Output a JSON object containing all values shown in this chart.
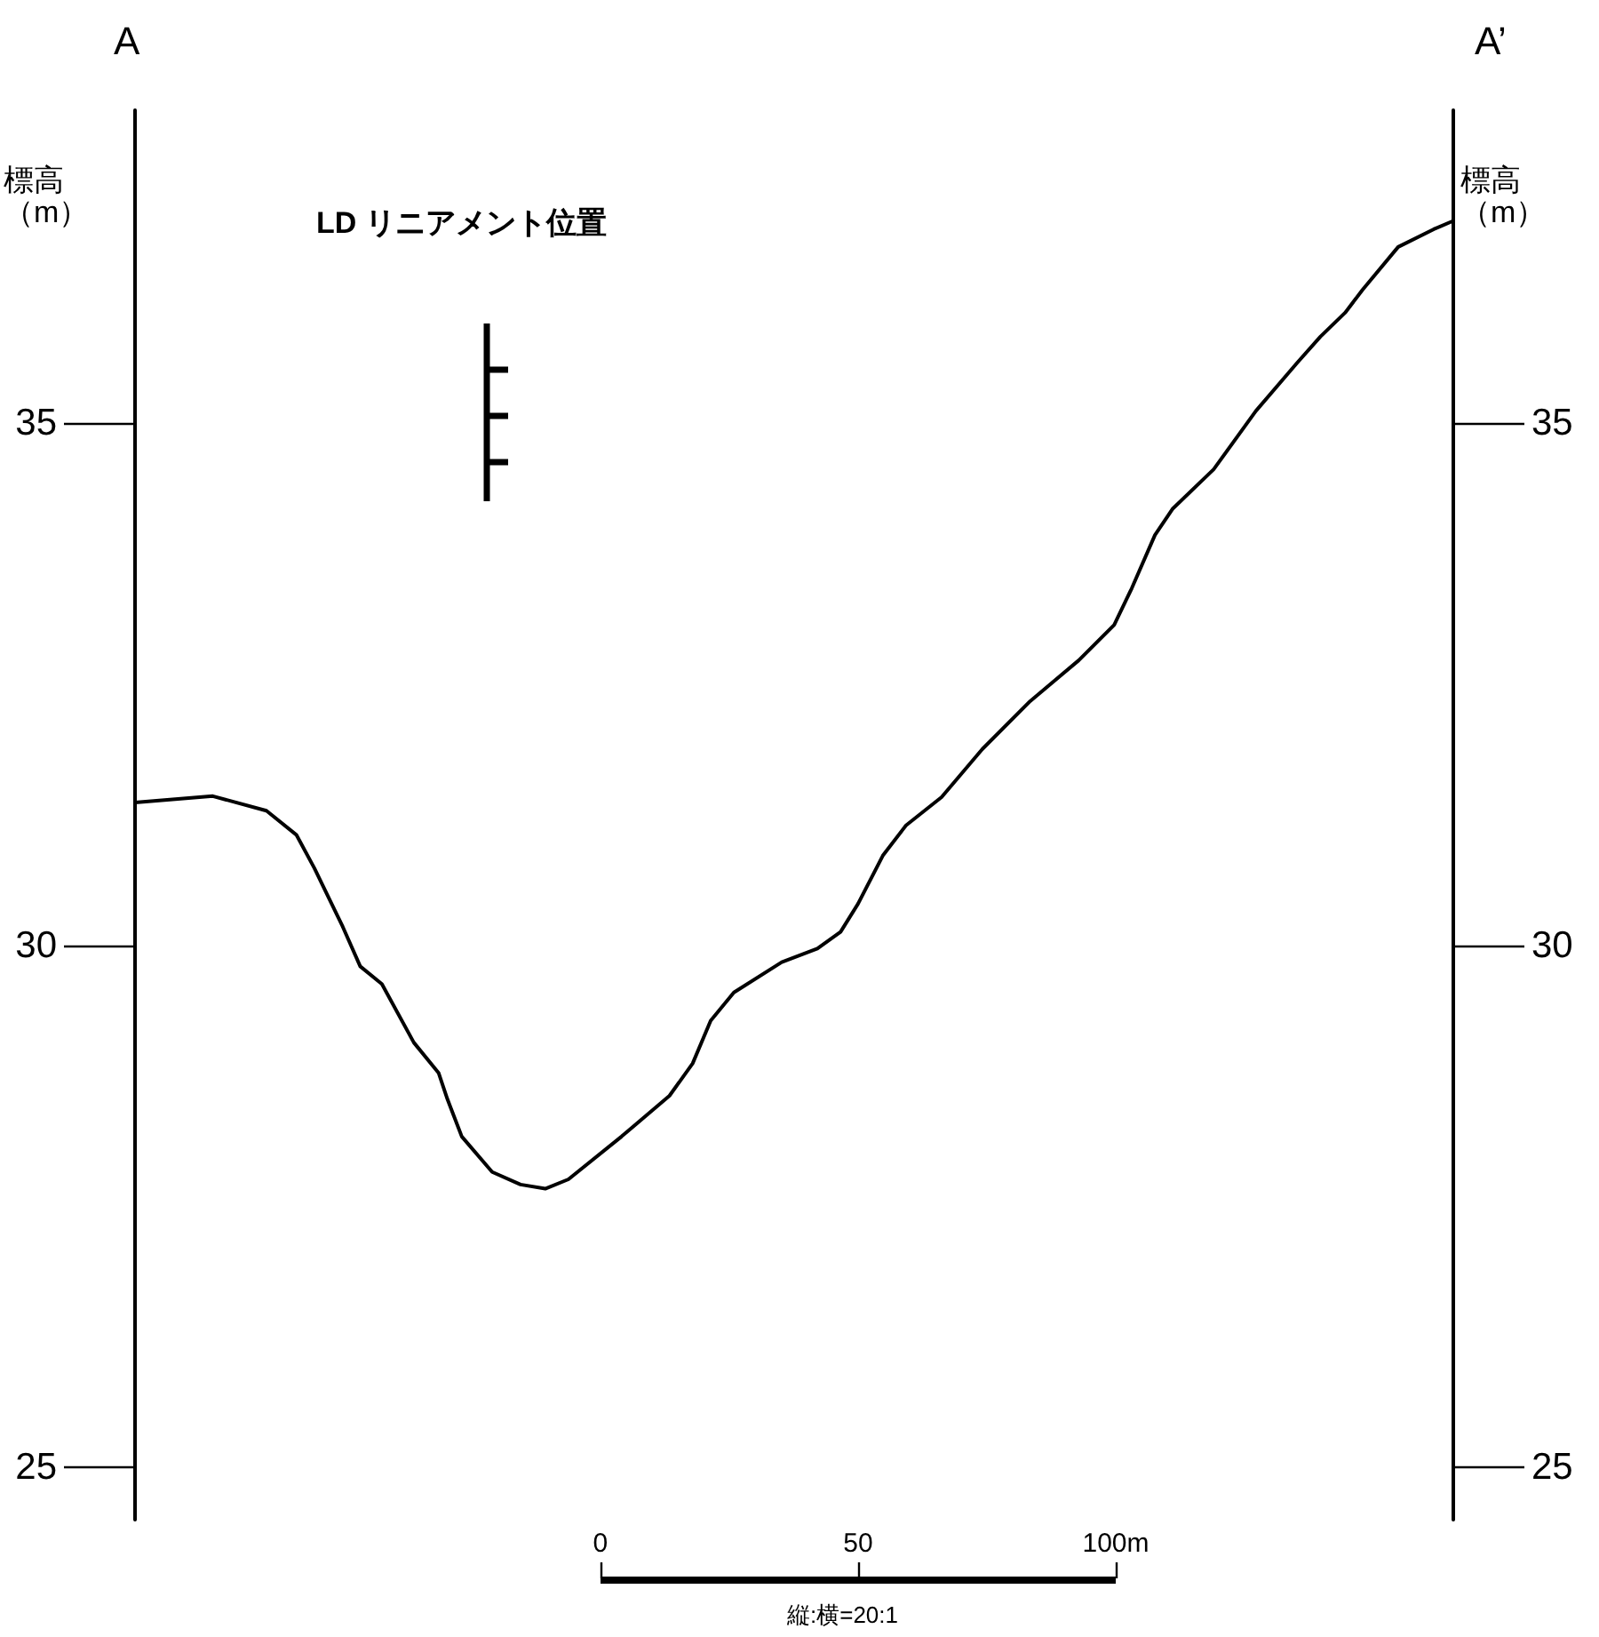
{
  "chart_data": {
    "type": "line",
    "ylabel": "標高（m）",
    "y2label": "標高（m）",
    "annotations": [
      "A",
      "A’",
      "LD リニアメント位置",
      "縦:横=20:1"
    ],
    "x": [
      -90.3,
      -75.2,
      -64.8,
      -59.0,
      -55.5,
      -50.0,
      -46.6,
      -42.4,
      -36.2,
      -31.4,
      -29.7,
      -26.9,
      -21.0,
      -15.5,
      -10.7,
      -6.2,
      4.1,
      13.4,
      17.9,
      21.4,
      25.9,
      35.2,
      42.1,
      46.6,
      50.0,
      54.8,
      59.3,
      66.2,
      74.1,
      83.4,
      92.8,
      99.7,
      103.1,
      107.6,
      111.0,
      119.0,
      127.2,
      135.2,
      139.7,
      144.5,
      147.9,
      154.8,
      161.7,
      165.5
    ],
    "series": [
      {
        "color": "#000000",
        "values": [
          31.37,
          31.43,
          31.29,
          31.06,
          30.74,
          30.18,
          29.8,
          29.63,
          29.07,
          28.78,
          28.53,
          28.17,
          27.83,
          27.71,
          27.67,
          27.76,
          28.17,
          28.56,
          28.87,
          29.28,
          29.55,
          29.84,
          29.97,
          30.13,
          30.4,
          30.86,
          31.15,
          31.42,
          31.88,
          32.34,
          32.73,
          33.07,
          33.42,
          33.93,
          34.18,
          34.56,
          35.12,
          35.58,
          35.83,
          36.06,
          36.28,
          36.69,
          36.86,
          36.94
        ]
      }
    ],
    "marker": "none",
    "line_style": "solid",
    "xlim": [
      -90.3,
      165.5
    ],
    "xticks": [
      0,
      50,
      {
        "value": 100,
        "label": "100m"
      }
    ],
    "ylim": [
      24.5,
      38
    ],
    "yticks": [
      25,
      30,
      35
    ],
    "y2lim": [
      24.5,
      38
    ],
    "y2ticks": [
      25,
      30,
      35
    ]
  }
}
